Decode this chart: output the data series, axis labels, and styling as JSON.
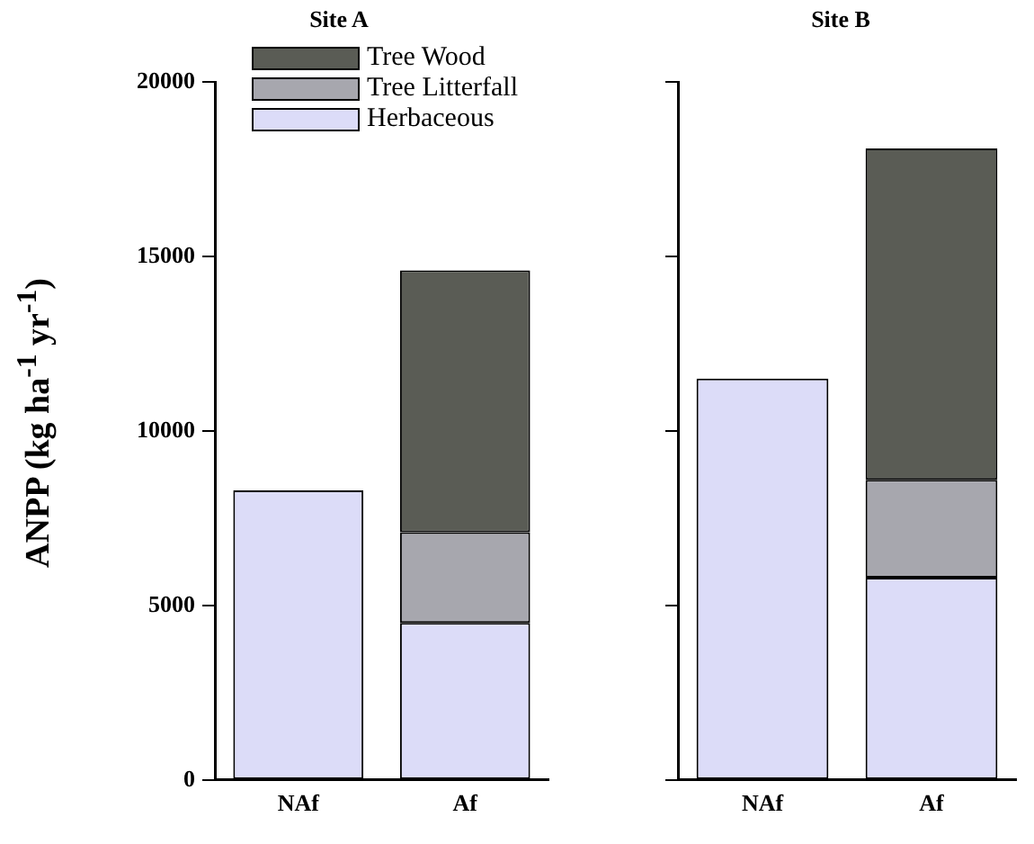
{
  "chart_data": [
    {
      "type": "bar",
      "title": "Site A",
      "ylabel": "ANPP (kg ha$^{-1}$ yr$^{-1}$)",
      "categories": [
        "NAf",
        "Af"
      ],
      "stacked": true,
      "ylim": [
        0,
        20000
      ],
      "yticks": [
        0,
        5000,
        10000,
        15000,
        20000
      ],
      "grid": false,
      "legend": "top left",
      "series": [
        {
          "name": "Herbaceous",
          "color": "#dcdcf8",
          "values": [
            8300,
            4500
          ]
        },
        {
          "name": "Tree Litterfall",
          "color": "#a7a7ae",
          "values": [
            null,
            2600
          ]
        },
        {
          "name": "Tree Wood",
          "color": "#5a5c55",
          "values": [
            null,
            7500
          ]
        }
      ]
    },
    {
      "type": "bar",
      "title": "Site B",
      "categories": [
        "NAf",
        "Af"
      ],
      "stacked": true,
      "ylim": [
        0,
        20000
      ],
      "yticks": [
        0,
        5000,
        10000,
        15000,
        20000
      ],
      "grid": false,
      "tick_labels": "x",
      "series": [
        {
          "color": "#dcdcf8",
          "values": [
            11500,
            5800
          ]
        },
        {
          "color": "#a7a7ae",
          "values": [
            null,
            2800
          ]
        },
        {
          "color": "#5a5c55",
          "values": [
            null,
            9500
          ]
        }
      ]
    }
  ]
}
